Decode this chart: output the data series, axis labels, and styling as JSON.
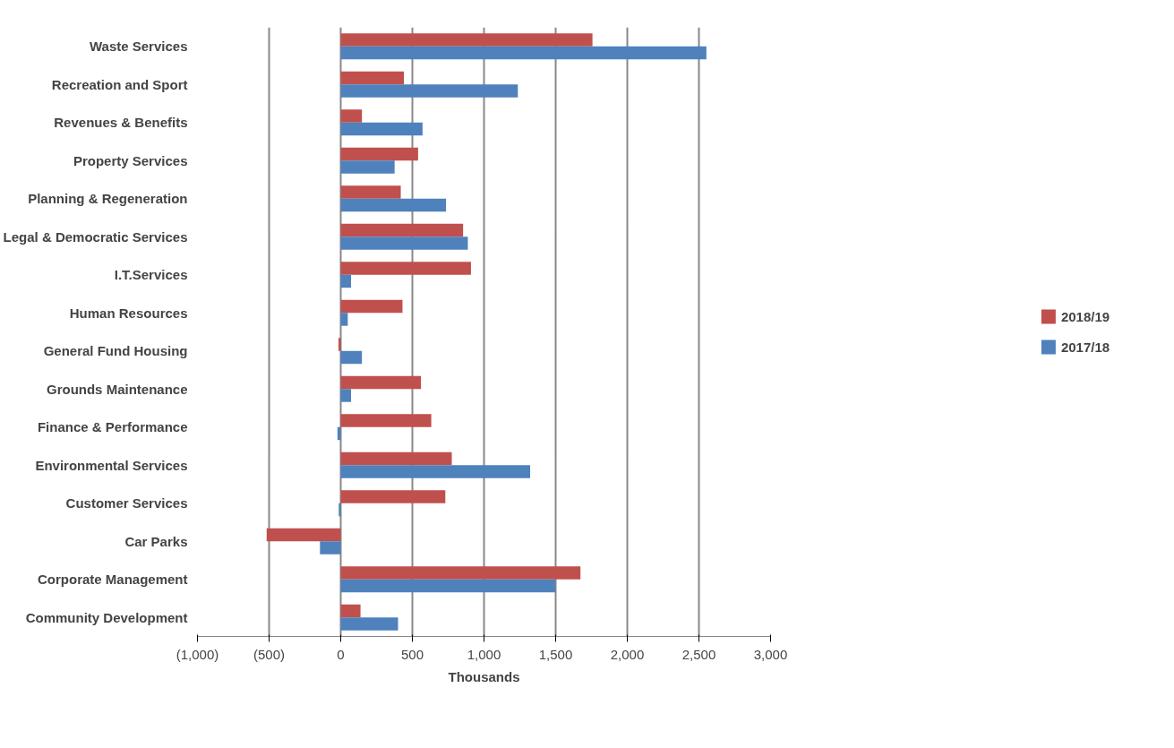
{
  "chart_data": {
    "type": "bar",
    "orientation": "horizontal",
    "xlabel": "Thousands",
    "categories": [
      "Waste Services",
      "Recreation and Sport",
      "Revenues & Benefits",
      "Property Services",
      "Planning & Regeneration",
      "Legal & Democratic Services",
      "I.T.Services",
      "Human Resources",
      "General Fund Housing",
      "Grounds Maintenance",
      "Finance & Performance",
      "Environmental Services",
      "Customer Services",
      "Car Parks",
      "Corporate Management",
      "Community Development"
    ],
    "series": [
      {
        "name": "2018/19",
        "color": "#c0504d",
        "values": [
          1757,
          441,
          148,
          540,
          419,
          854,
          909,
          431,
          -16,
          560,
          632,
          775,
          730,
          -517,
          1673,
          138
        ]
      },
      {
        "name": "2017/18",
        "color": "#4f81bd",
        "values": [
          2552,
          1236,
          571,
          376,
          735,
          887,
          72,
          49,
          148,
          72,
          -23,
          1322,
          -14,
          -145,
          1498,
          400
        ]
      }
    ],
    "xlim": [
      -1000,
      3000
    ],
    "xticks": [
      {
        "value": -1000,
        "label": "(1,000)"
      },
      {
        "value": -500,
        "label": "(500)"
      },
      0,
      {
        "value": 500,
        "label": "500"
      },
      {
        "value": 1000,
        "label": "1,000"
      },
      {
        "value": 1500,
        "label": "1,500"
      },
      {
        "value": 2000,
        "label": "2,000"
      },
      {
        "value": 2500,
        "label": "2,500"
      },
      {
        "value": 3000,
        "label": "3,000"
      }
    ],
    "grid": "x",
    "legend": "right"
  }
}
